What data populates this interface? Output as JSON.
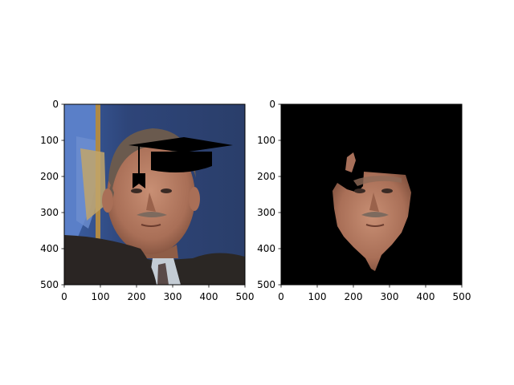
{
  "chart_data": [
    {
      "type": "image",
      "title": "",
      "xlabel": "",
      "ylabel": "",
      "xlim": [
        0,
        500
      ],
      "ylim": [
        500,
        0
      ],
      "xticks": [
        "0",
        "100",
        "200",
        "300",
        "400",
        "500"
      ],
      "yticks": [
        "0",
        "100",
        "200",
        "300",
        "400",
        "500"
      ],
      "content": "photo of a man in a suit with a black graduation cap overlay"
    },
    {
      "type": "image",
      "title": "",
      "xlabel": "",
      "ylabel": "",
      "xlim": [
        0,
        500
      ],
      "ylim": [
        500,
        0
      ],
      "xticks": [
        "0",
        "100",
        "200",
        "300",
        "400",
        "500"
      ],
      "yticks": [
        "0",
        "100",
        "200",
        "300",
        "400",
        "500"
      ],
      "content": "segmentation mask showing only the face region on black background"
    }
  ],
  "colors": {
    "background": "#ffffff",
    "mask_background": "#000000",
    "skin": "#b98168",
    "jacket": "#2a2623",
    "backdrop_blue": "#2f4a7d",
    "cap": "#000000"
  }
}
